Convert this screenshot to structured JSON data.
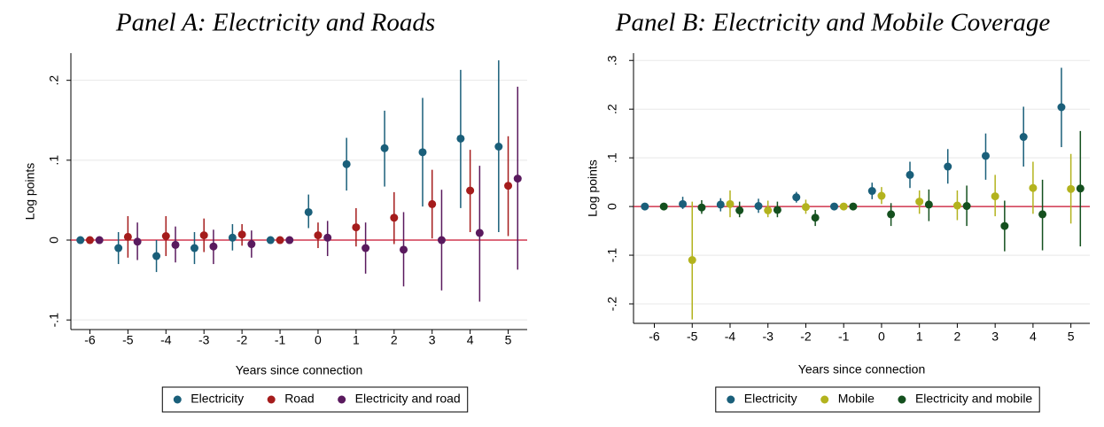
{
  "chart_data": [
    {
      "type": "errorbar",
      "title": "Panel A: Electricity and Roads",
      "x_label": "Years since connection",
      "y_label": "Log points",
      "xlim": [
        -6.5,
        5.5
      ],
      "ylim": [
        -0.112,
        0.234
      ],
      "xticks": [
        -6,
        -5,
        -4,
        -3,
        -2,
        -1,
        0,
        1,
        2,
        3,
        4,
        5
      ],
      "yticks": [
        {
          "value": -0.1,
          "label": "-.1"
        },
        0,
        {
          "value": 0.1,
          "label": ".1"
        },
        {
          "value": 0.2,
          "label": ".2"
        }
      ],
      "grid": true,
      "hline": 0,
      "hline_color": "#c8102e",
      "legend": "bottom",
      "series": [
        {
          "name": "Electricity",
          "color": "#1a5f7a",
          "x": [
            -6.25,
            -5.25,
            -4.25,
            -3.25,
            -2.25,
            -1.25,
            -0.25,
            0.75,
            1.75,
            2.75,
            3.75,
            4.75
          ],
          "values": [
            0,
            -0.01,
            -0.02,
            -0.01,
            0.003,
            0,
            0.035,
            0.095,
            0.115,
            0.11,
            0.127,
            0.117
          ],
          "ci_low": [
            null,
            -0.03,
            -0.04,
            -0.03,
            -0.013,
            null,
            0.015,
            0.062,
            0.067,
            0.042,
            0.04,
            0.01
          ],
          "ci_high": [
            null,
            0.01,
            0.0,
            0.01,
            0.02,
            null,
            0.057,
            0.128,
            0.162,
            0.178,
            0.213,
            0.225
          ]
        },
        {
          "name": "Road",
          "color": "#a51c1c",
          "x": [
            -6,
            -5,
            -4,
            -3,
            -2,
            -1,
            0,
            1,
            2,
            3,
            4,
            5
          ],
          "values": [
            0,
            0.004,
            0.005,
            0.006,
            0.007,
            0,
            0.006,
            0.016,
            0.028,
            0.045,
            0.062,
            0.068
          ],
          "ci_low": [
            null,
            -0.022,
            -0.02,
            -0.015,
            -0.007,
            null,
            -0.01,
            -0.008,
            -0.005,
            0.002,
            0.01,
            0.005
          ],
          "ci_high": [
            null,
            0.03,
            0.03,
            0.027,
            0.02,
            null,
            0.022,
            0.04,
            0.06,
            0.088,
            0.113,
            0.13
          ]
        },
        {
          "name": "Electricity and road",
          "color": "#5a1a5e",
          "x": [
            -5.75,
            -4.75,
            -3.75,
            -2.75,
            -1.75,
            -0.75,
            0.25,
            1.25,
            2.25,
            3.25,
            4.25,
            5.25
          ],
          "values": [
            0,
            -0.002,
            -0.006,
            -0.008,
            -0.005,
            0,
            0.003,
            -0.01,
            -0.012,
            0,
            0.009,
            0.077
          ],
          "ci_low": [
            null,
            -0.025,
            -0.028,
            -0.03,
            -0.022,
            null,
            -0.02,
            -0.042,
            -0.058,
            -0.063,
            -0.077,
            -0.037
          ],
          "ci_high": [
            null,
            0.022,
            0.017,
            0.013,
            0.012,
            null,
            0.024,
            0.022,
            0.035,
            0.063,
            0.093,
            0.192
          ]
        }
      ]
    },
    {
      "type": "errorbar",
      "title": "Panel B: Electricity and Mobile Coverage",
      "x_label": "Years since connection",
      "y_label": "Log points",
      "xlim": [
        -6.55,
        5.5
      ],
      "ylim": [
        -0.24,
        0.315
      ],
      "xticks": [
        -6,
        -5,
        -4,
        -3,
        -2,
        -1,
        0,
        1,
        2,
        3,
        4,
        5
      ],
      "yticks": [
        {
          "value": -0.2,
          "label": "-.2"
        },
        {
          "value": -0.1,
          "label": "-.1"
        },
        0,
        {
          "value": 0.1,
          "label": ".1"
        },
        {
          "value": 0.2,
          "label": ".2"
        },
        {
          "value": 0.3,
          "label": ".3"
        }
      ],
      "grid": true,
      "hline": 0,
      "hline_color": "#c8102e",
      "legend": "bottom",
      "series": [
        {
          "name": "Electricity",
          "color": "#1a5f7a",
          "x": [
            -6.25,
            -5.25,
            -4.25,
            -3.25,
            -2.25,
            -1.25,
            -0.25,
            0.75,
            1.75,
            2.75,
            3.75,
            4.75
          ],
          "values": [
            0,
            0.005,
            0.004,
            0.001,
            0.019,
            0,
            0.032,
            0.065,
            0.082,
            0.104,
            0.143,
            0.204
          ],
          "ci_low": [
            null,
            -0.005,
            -0.01,
            -0.013,
            0.008,
            null,
            0.015,
            0.038,
            0.047,
            0.055,
            0.082,
            0.122
          ],
          "ci_high": [
            null,
            0.02,
            0.017,
            0.016,
            0.03,
            null,
            0.049,
            0.092,
            0.118,
            0.15,
            0.205,
            0.285
          ]
        },
        {
          "name": "Mobile",
          "color": "#b3b31e",
          "x": [
            -6,
            -5,
            -4,
            -3,
            -2,
            -1,
            0,
            1,
            2,
            3,
            4,
            5
          ],
          "values": [
            null,
            -0.11,
            0.005,
            -0.008,
            -0.001,
            0,
            0.022,
            0.01,
            0.002,
            0.021,
            0.038,
            0.036
          ],
          "ci_low": [
            null,
            -0.232,
            -0.022,
            -0.022,
            -0.015,
            null,
            0.005,
            -0.015,
            -0.028,
            -0.02,
            -0.015,
            -0.035
          ],
          "ci_high": [
            null,
            0.01,
            0.033,
            0.012,
            0.014,
            null,
            0.04,
            0.033,
            0.033,
            0.065,
            0.092,
            0.108
          ]
        },
        {
          "name": "Electricity and mobile",
          "color": "#14501e",
          "x": [
            -5.75,
            -4.75,
            -3.75,
            -2.75,
            -1.75,
            -0.75,
            0.25,
            1.25,
            2.25,
            3.25,
            4.25,
            5.25
          ],
          "values": [
            0,
            -0.002,
            -0.008,
            -0.007,
            -0.023,
            0,
            -0.016,
            0.004,
            0.001,
            -0.04,
            -0.016,
            0.037
          ],
          "ci_low": [
            null,
            -0.015,
            -0.022,
            -0.022,
            -0.04,
            null,
            -0.04,
            -0.03,
            -0.04,
            -0.092,
            -0.09,
            -0.082
          ],
          "ci_high": [
            null,
            0.013,
            0.01,
            0.01,
            -0.007,
            null,
            0.007,
            0.035,
            0.043,
            0.012,
            0.055,
            0.155
          ]
        }
      ]
    }
  ]
}
